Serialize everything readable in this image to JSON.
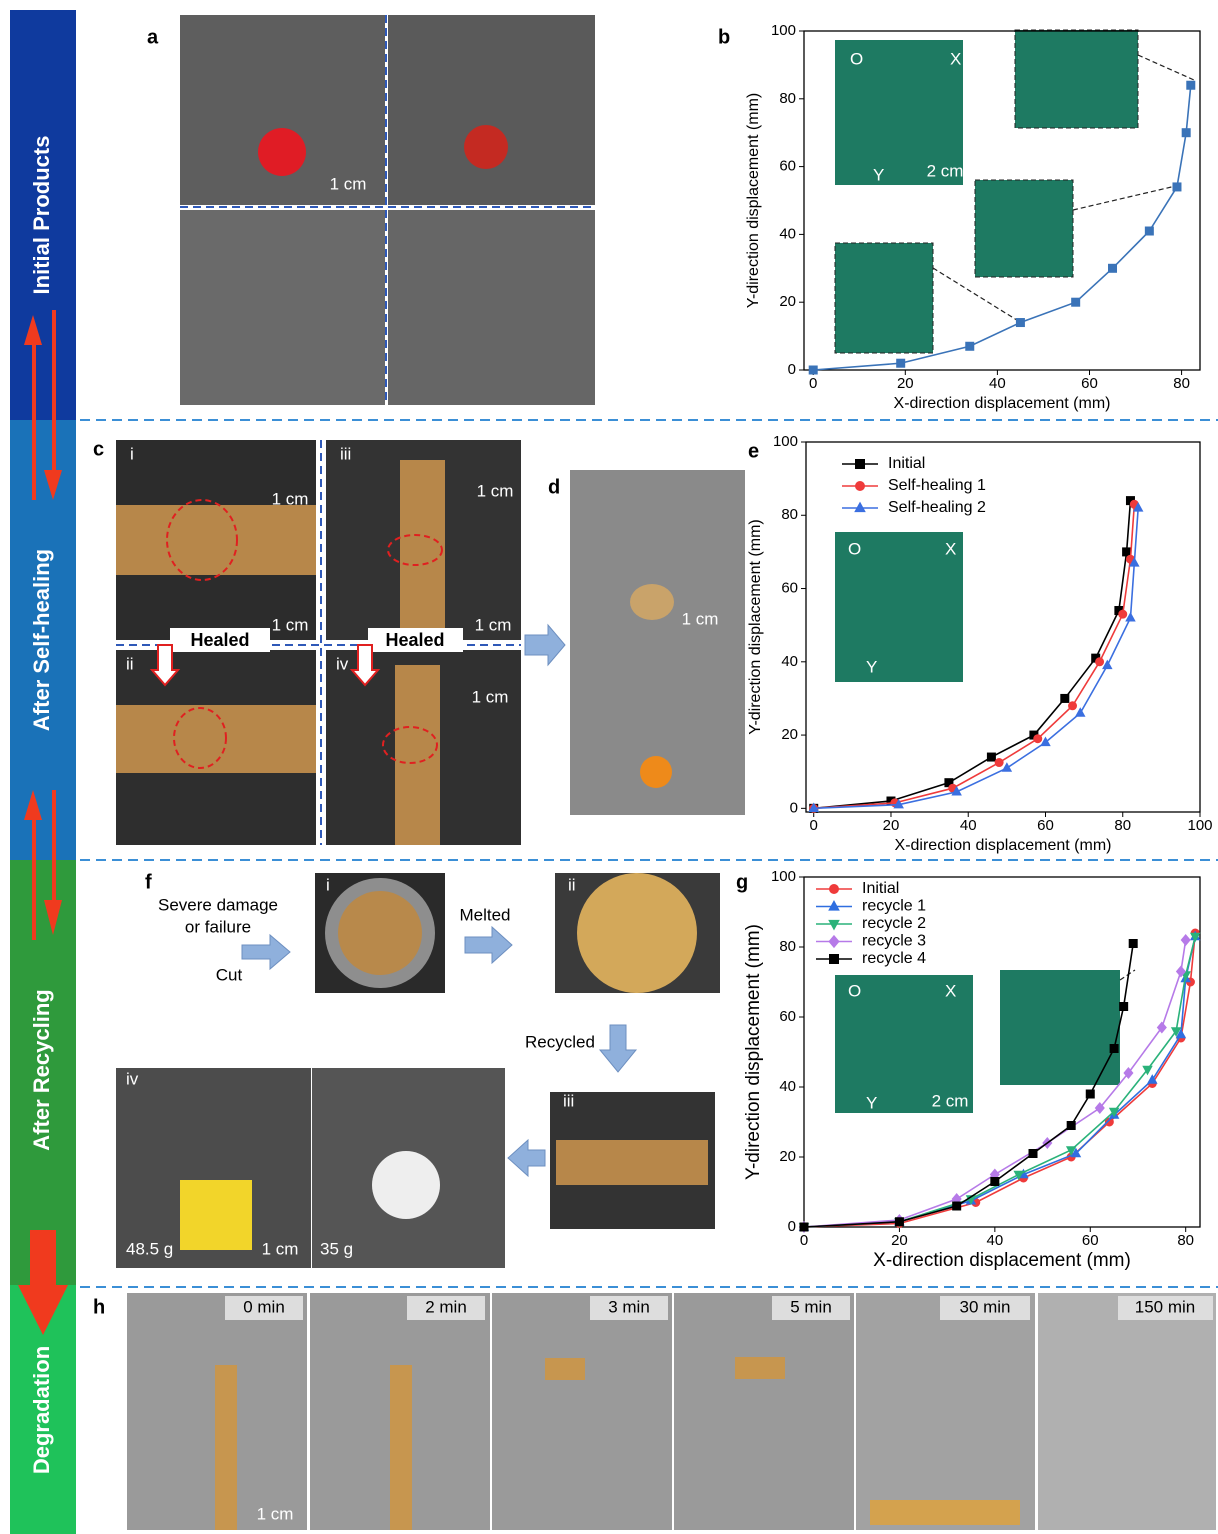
{
  "figure": {
    "side_labels": [
      "Initial Products",
      "After Self-healing",
      "After Recycling",
      "Degradation"
    ],
    "panels": [
      "a",
      "b",
      "c",
      "d",
      "e",
      "f",
      "g",
      "h"
    ],
    "a": {
      "scale": "1 cm"
    },
    "c": {
      "sub": [
        "i",
        "iii",
        "ii",
        "iv"
      ],
      "scales": [
        "1 cm",
        "1 cm",
        "1 cm",
        "1 cm",
        "1 cm"
      ],
      "healed": [
        "Healed",
        "Healed"
      ]
    },
    "d": {
      "scale": "1 cm"
    },
    "f": {
      "damage": [
        "Severe damage",
        "or failure"
      ],
      "cut": "Cut",
      "melted": "Melted",
      "recycled": "Recycled",
      "sub": [
        "i",
        "ii",
        "iii",
        "iv"
      ],
      "masses": [
        "48.5 g",
        "35 g"
      ],
      "scale": "1 cm"
    },
    "h": {
      "times": [
        "0 min",
        "2 min",
        "3 min",
        "5 min",
        "30 min",
        "150 min"
      ],
      "scale": "1 cm"
    }
  },
  "chart_data": [
    {
      "type": "line",
      "xlabel": "X-direction displacement (mm)",
      "ylabel": "Y-direction displacement (mm)",
      "xlim": [
        -2,
        84
      ],
      "ylim": [
        0,
        100
      ],
      "xticks": [
        0,
        20,
        40,
        60,
        80
      ],
      "yticks": [
        0,
        20,
        40,
        60,
        80,
        100
      ],
      "x": [
        0,
        19,
        34,
        45,
        57,
        65,
        73,
        79,
        81,
        82
      ],
      "values": [
        0,
        2,
        7,
        14,
        20,
        30,
        41,
        54,
        70,
        84
      ],
      "color": "#3a73b8",
      "marker": "square",
      "annotations": [
        "O",
        "X",
        "Y",
        "2 cm"
      ]
    },
    {
      "type": "line",
      "xlabel": "X-direction displacement (mm)",
      "ylabel": "Y-direction displacement (mm)",
      "xlim": [
        -2,
        100
      ],
      "ylim": [
        -1,
        100
      ],
      "xticks": [
        0,
        20,
        40,
        60,
        80,
        100
      ],
      "yticks": [
        0,
        20,
        40,
        60,
        80,
        100
      ],
      "legend": "upper left",
      "annotations": [
        "O",
        "X",
        "Y"
      ],
      "series": [
        {
          "name": "Initial",
          "color": "#000000",
          "marker": "square",
          "x": [
            0,
            20,
            35,
            46,
            57,
            65,
            73,
            79,
            81,
            82
          ],
          "values": [
            0,
            2,
            7,
            14,
            20,
            30,
            41,
            54,
            70,
            84
          ]
        },
        {
          "name": "Self-healing 1",
          "color": "#ef3b3b",
          "marker": "circle",
          "x": [
            0,
            21,
            36,
            48,
            58,
            67,
            74,
            80,
            82,
            83
          ],
          "values": [
            0,
            1.5,
            5.5,
            12.5,
            19,
            28,
            40,
            53,
            68,
            83
          ]
        },
        {
          "name": "Self-healing 2",
          "color": "#3b6fe0",
          "marker": "triangle",
          "x": [
            0,
            22,
            37,
            50,
            60,
            69,
            76,
            82,
            83,
            84
          ],
          "values": [
            0,
            1,
            4.5,
            11,
            18,
            26,
            39,
            52,
            67,
            82
          ]
        }
      ]
    },
    {
      "type": "line",
      "xlabel": "X-direction displacement (mm)",
      "ylabel": "Y-direction displacement (mm)",
      "xlim": [
        0,
        83
      ],
      "ylim": [
        0,
        100
      ],
      "xticks": [
        0,
        20,
        40,
        60,
        80
      ],
      "yticks": [
        0,
        20,
        40,
        60,
        80,
        100
      ],
      "legend": "upper left",
      "annotations": [
        "O",
        "X",
        "Y",
        "2 cm"
      ],
      "series": [
        {
          "name": "Initial",
          "color": "#ef3b3b",
          "marker": "circle",
          "x": [
            0,
            20,
            36,
            46,
            56,
            64,
            73,
            79,
            81,
            82
          ],
          "values": [
            0,
            1,
            7,
            14,
            20,
            30,
            41,
            54,
            70,
            84
          ]
        },
        {
          "name": "recycle 1",
          "color": "#2f6ee0",
          "marker": "triangle",
          "x": [
            0,
            20,
            35,
            46,
            57,
            65,
            73,
            79,
            80,
            82
          ],
          "values": [
            0,
            1.5,
            7.5,
            15,
            21,
            32,
            42,
            55,
            71,
            83
          ]
        },
        {
          "name": "recycle 2",
          "color": "#2ab27a",
          "marker": "triangle-down",
          "x": [
            0,
            20,
            35,
            45,
            56,
            65,
            72,
            78,
            80,
            82
          ],
          "values": [
            0,
            1.5,
            8,
            15,
            22,
            33,
            45,
            56,
            72,
            83
          ]
        },
        {
          "name": "recycle 3",
          "color": "#b67ae8",
          "marker": "diamond",
          "x": [
            0,
            20,
            32,
            40,
            51,
            62,
            68,
            75,
            79,
            80
          ],
          "values": [
            0,
            2,
            8,
            15,
            24,
            34,
            44,
            57,
            73,
            82
          ]
        },
        {
          "name": "recycle 4",
          "color": "#000000",
          "marker": "square",
          "x": [
            0,
            20,
            32,
            40,
            48,
            56,
            60,
            65,
            67,
            69
          ],
          "values": [
            0,
            1.5,
            6,
            13,
            21,
            29,
            38,
            51,
            63,
            81
          ]
        }
      ]
    }
  ]
}
